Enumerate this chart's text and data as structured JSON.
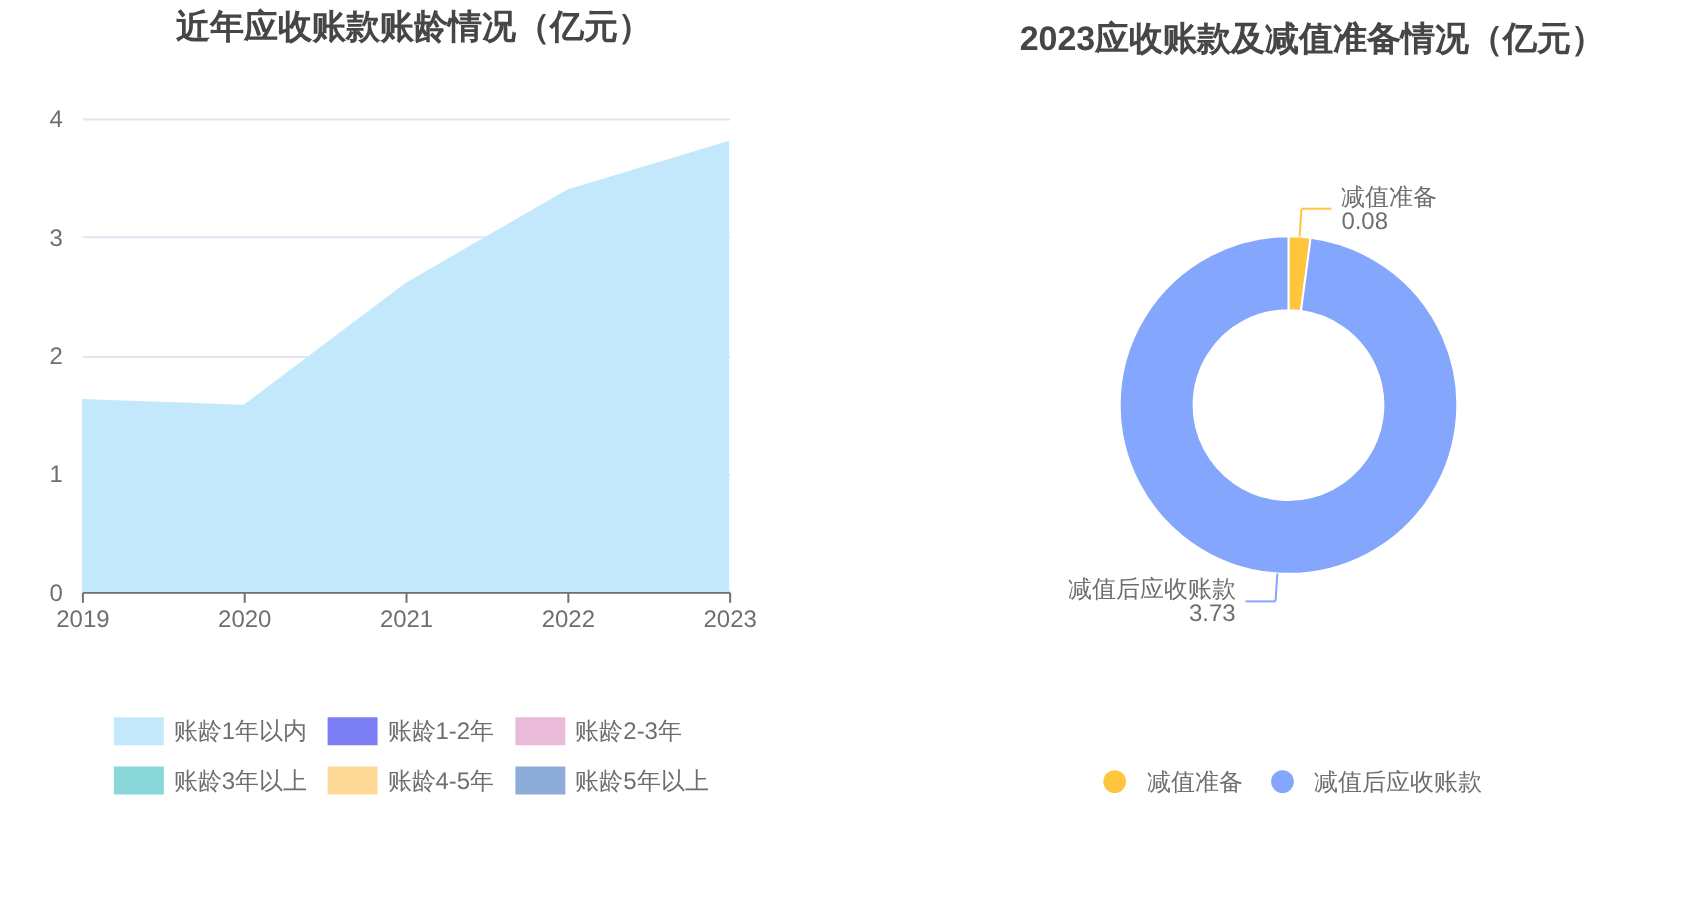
{
  "chart_data": [
    {
      "type": "area",
      "title": "近年应收账款账龄情况（亿元）",
      "categories": [
        "2019",
        "2020",
        "2021",
        "2022",
        "2023"
      ],
      "series": [
        {
          "name": "账龄1年以内",
          "color": "#c4e8fb",
          "values": [
            1.63,
            1.58,
            2.61,
            3.4,
            3.81
          ]
        },
        {
          "name": "账龄1-2年",
          "color": "#7b7ef5",
          "values": [
            null,
            null,
            null,
            null,
            null
          ]
        },
        {
          "name": "账龄2-3年",
          "color": "#e9bbd9",
          "values": [
            null,
            null,
            null,
            null,
            null
          ]
        },
        {
          "name": "账龄3年以上",
          "color": "#89d7d8",
          "values": [
            null,
            null,
            null,
            null,
            null
          ]
        },
        {
          "name": "账龄4-5年",
          "color": "#fed896",
          "values": [
            null,
            null,
            null,
            null,
            null
          ]
        },
        {
          "name": "账龄5年以上",
          "color": "#8dacda",
          "values": [
            null,
            null,
            null,
            null,
            null
          ]
        }
      ],
      "ylim": [
        0,
        4
      ],
      "yticks": [
        0,
        1,
        2,
        3,
        4
      ],
      "grid": "y",
      "legend": "bottom"
    },
    {
      "type": "donut",
      "title": "2023应收账款及减值准备情况（亿元）",
      "categories": [
        "减值准备",
        "减值后应收账款"
      ],
      "values": [
        0.08,
        3.73
      ],
      "colors": [
        "#ffc53d",
        "#85a6fd"
      ],
      "data_labels": true,
      "legend": "bottom"
    }
  ]
}
